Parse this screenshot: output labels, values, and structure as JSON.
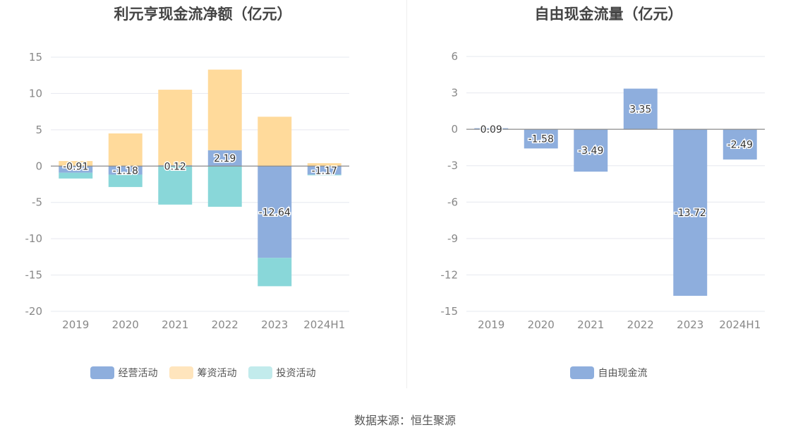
{
  "chart_data": [
    {
      "type": "bar",
      "stacked": true,
      "title": "利元亨现金流净额（亿元）",
      "categories": [
        "2019",
        "2020",
        "2021",
        "2022",
        "2023",
        "2024H1"
      ],
      "ylim": [
        -20,
        15
      ],
      "yticks": [
        15,
        10,
        5,
        0,
        -5,
        -10,
        -15,
        -20
      ],
      "grid": true,
      "legend_position": "bottom",
      "series": [
        {
          "name": "经营活动",
          "color": "#8eaedd",
          "values": [
            -0.91,
            -1.18,
            0.12,
            2.19,
            -12.64,
            -1.17
          ],
          "labeled": true
        },
        {
          "name": "筹资活动",
          "color": "#ffda9b",
          "values": [
            0.7,
            4.5,
            10.4,
            11.1,
            6.8,
            0.4
          ],
          "labeled": false
        },
        {
          "name": "投资活动",
          "color": "#89d7d9",
          "values": [
            -0.8,
            -1.7,
            -5.3,
            -5.6,
            -3.9,
            -0.1
          ],
          "labeled": false
        }
      ],
      "legend_colors": [
        "#8eaedd",
        "#ffe5bd",
        "#c2ebec"
      ],
      "data_labels": [
        "-0.91",
        "-1.18",
        "0.12",
        "2.19",
        "-12.64",
        "-1.17"
      ]
    },
    {
      "type": "bar",
      "title": "自由现金流量（亿元）",
      "categories": [
        "2019",
        "2020",
        "2021",
        "2022",
        "2023",
        "2024H1"
      ],
      "ylim": [
        -15,
        6
      ],
      "yticks": [
        6,
        3,
        0,
        -3,
        -6,
        -9,
        -12,
        -15
      ],
      "grid": true,
      "legend_position": "bottom",
      "series": [
        {
          "name": "自由现金流",
          "color": "#8eaedd",
          "values": [
            0.09,
            -1.58,
            -3.49,
            3.35,
            -13.72,
            -2.49
          ],
          "labeled": true
        }
      ],
      "legend_colors": [
        "#8eaedd"
      ],
      "data_labels": [
        "0.09",
        "-1.58",
        "-3.49",
        "3.35",
        "-13.72",
        "-2.49"
      ]
    }
  ],
  "source_text": "数据来源：恒生聚源"
}
